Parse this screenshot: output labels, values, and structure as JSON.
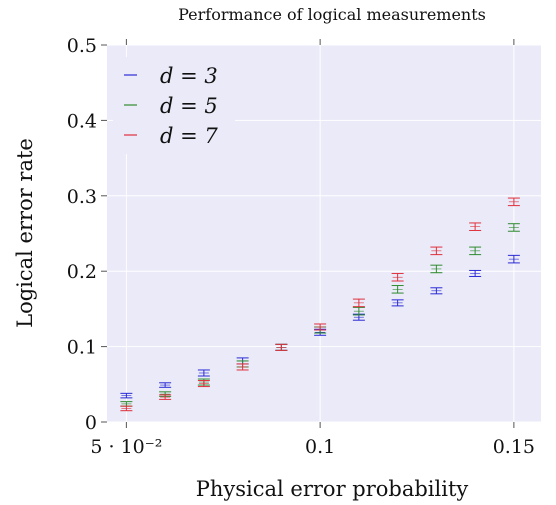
{
  "chart_data": {
    "type": "scatter",
    "title": "Performance of logical measurements",
    "xlabel": "Physical error probability",
    "ylabel": "Logical error rate",
    "xlim": [
      0.045,
      0.157
    ],
    "ylim": [
      0,
      0.5
    ],
    "x_ticks": [
      {
        "value": 0.05,
        "label": "5 · 10⁻²"
      },
      {
        "value": 0.1,
        "label": "0.1"
      },
      {
        "value": 0.15,
        "label": "0.15"
      }
    ],
    "y_ticks": [
      {
        "value": 0,
        "label": "0"
      },
      {
        "value": 0.1,
        "label": "0.1"
      },
      {
        "value": 0.2,
        "label": "0.2"
      },
      {
        "value": 0.3,
        "label": "0.3"
      },
      {
        "value": 0.4,
        "label": "0.4"
      },
      {
        "value": 0.5,
        "label": "0.5"
      }
    ],
    "grid": true,
    "legend_position": "top-left",
    "x": [
      0.05,
      0.06,
      0.07,
      0.08,
      0.09,
      0.1,
      0.11,
      0.12,
      0.13,
      0.14,
      0.15
    ],
    "series": [
      {
        "name": "d = 3",
        "color": "#2b2bd6",
        "values": [
          0.035,
          0.049,
          0.065,
          0.081,
          0.099,
          0.119,
          0.139,
          0.158,
          0.174,
          0.197,
          0.216
        ],
        "err": [
          0.003,
          0.003,
          0.004,
          0.004,
          0.004,
          0.004,
          0.004,
          0.004,
          0.004,
          0.004,
          0.005
        ]
      },
      {
        "name": "d = 5",
        "color": "#2e8b2e",
        "values": [
          0.024,
          0.037,
          0.053,
          0.077,
          0.099,
          0.122,
          0.147,
          0.176,
          0.203,
          0.227,
          0.258
        ],
        "err": [
          0.003,
          0.003,
          0.004,
          0.004,
          0.004,
          0.004,
          0.005,
          0.005,
          0.005,
          0.005,
          0.005
        ]
      },
      {
        "name": "d = 7",
        "color": "#e0303c",
        "values": [
          0.018,
          0.033,
          0.051,
          0.073,
          0.099,
          0.126,
          0.158,
          0.192,
          0.227,
          0.259,
          0.292
        ],
        "err": [
          0.003,
          0.003,
          0.004,
          0.004,
          0.004,
          0.004,
          0.005,
          0.005,
          0.005,
          0.005,
          0.005
        ]
      }
    ],
    "colors": {
      "plot_background": "#eaeaf8",
      "grid": "#ffffff"
    }
  }
}
